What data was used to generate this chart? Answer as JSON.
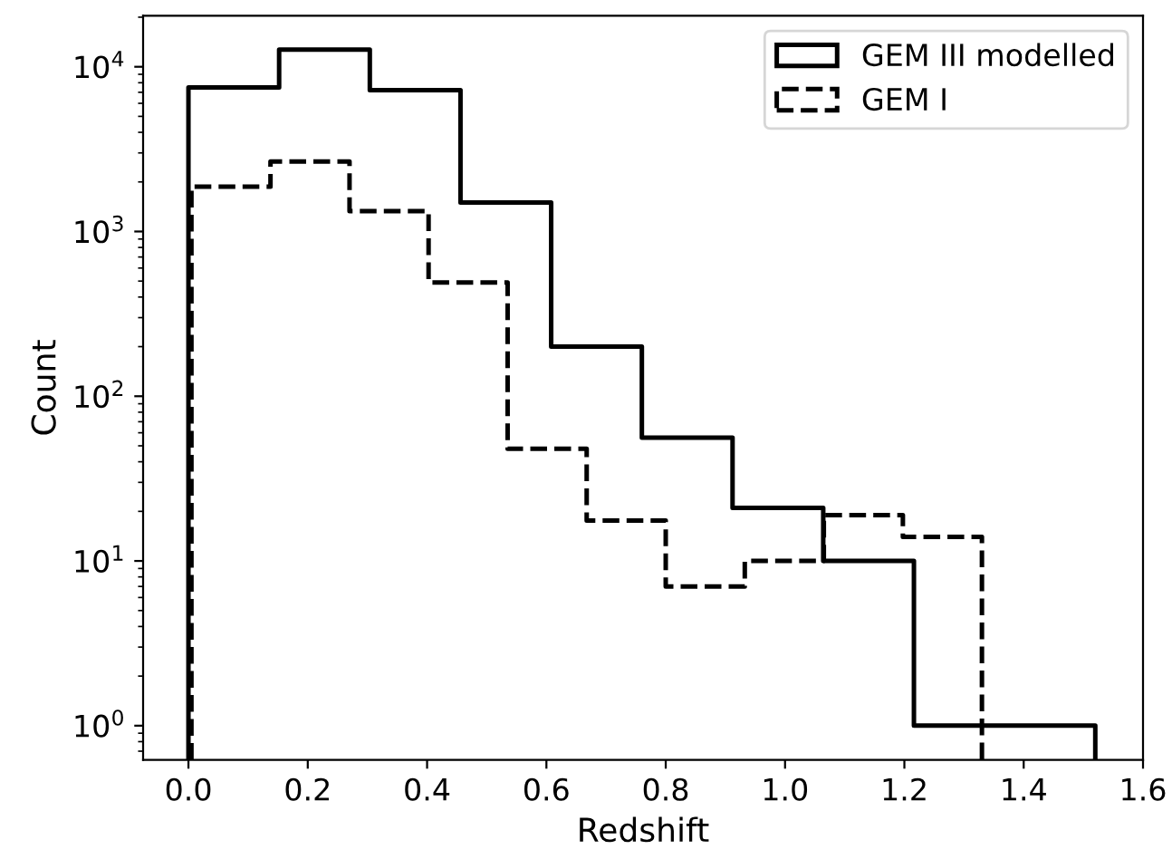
{
  "chart_data": {
    "type": "histogram",
    "xlabel": "Redshift",
    "ylabel": "Count",
    "log": "y",
    "legend": "top right",
    "xlim": [
      -0.076,
      1.6
    ],
    "ylim": [
      0.62,
      20400
    ],
    "xticks": [
      {
        "value": 0,
        "label": "0.0"
      },
      0.2,
      0.4,
      0.6,
      0.8,
      {
        "value": 1,
        "label": "1.0"
      },
      1.2,
      1.4,
      1.6
    ],
    "yticks": [
      {
        "value": 1,
        "label": "10$^{0}$"
      },
      {
        "value": 10,
        "label": "10$^{1}$"
      },
      {
        "value": 100,
        "label": "10$^{2}$"
      },
      {
        "value": 1000,
        "label": "10$^{3}$"
      },
      {
        "value": 10000,
        "label": "10$^{4}$"
      }
    ],
    "bins": [
      0,
      0.152,
      0.304,
      0.456,
      0.608,
      0.76,
      0.912,
      1.064,
      1.216,
      1.368,
      1.52
    ],
    "series": [
      {
        "name": "GEM III modelled",
        "color": "#000000",
        "line_style": "solid",
        "values": [
          7500,
          12700,
          7200,
          1500,
          200,
          56,
          21,
          10,
          1,
          1
        ]
      },
      {
        "name": "GEM I",
        "color": "#000000",
        "line_style": "dashed",
        "bins": [
          0.005,
          0.1375,
          0.27,
          0.4025,
          0.535,
          0.6675,
          0.8,
          0.9325,
          1.065,
          1.1975,
          1.33
        ],
        "values": [
          1870,
          2660,
          1330,
          490,
          48,
          17.6,
          7,
          10,
          19,
          14
        ]
      }
    ]
  }
}
